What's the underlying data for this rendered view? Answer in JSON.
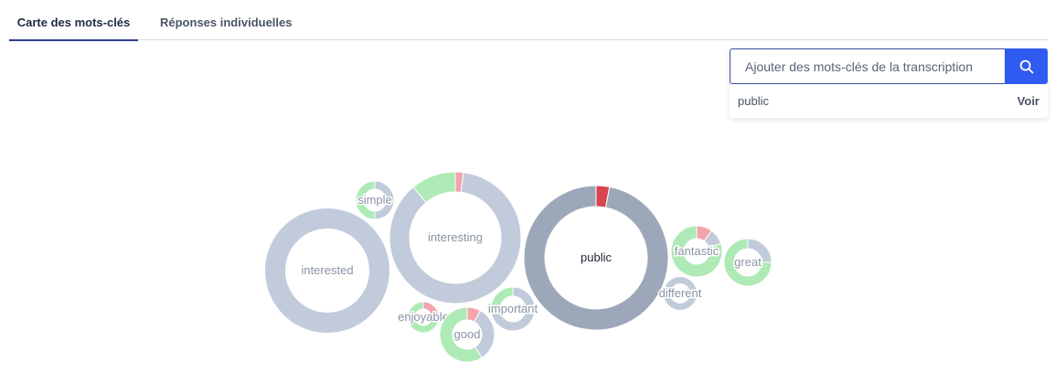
{
  "tabs": [
    {
      "label": "Carte des mots-clés",
      "active": true
    },
    {
      "label": "Réponses individuelles",
      "active": false
    }
  ],
  "search": {
    "placeholder": "Ajouter des mots-clés de la transcription",
    "value": "",
    "button_icon": "search-icon"
  },
  "suggestion": {
    "term": "public",
    "action_label": "Voir"
  },
  "colors": {
    "positive": "#aeeab6",
    "negative": "#f2a5ac",
    "neutral": "#c2cbdb",
    "selected_neutral": "#9ca8b9",
    "selected_negative": "#d9454f",
    "accent": "#2f5bf0",
    "label": "#8a93a3",
    "label_selected": "#1f2433"
  },
  "keywords": [
    {
      "word": "interested",
      "selected": false,
      "segments": [
        {
          "sentiment": "neutral",
          "share": 1.0
        }
      ]
    },
    {
      "word": "interesting",
      "selected": false,
      "segments": [
        {
          "sentiment": "negative",
          "share": 0.02
        },
        {
          "sentiment": "neutral",
          "share": 0.87
        },
        {
          "sentiment": "positive",
          "share": 0.11
        }
      ]
    },
    {
      "word": "public",
      "selected": true,
      "segments": [
        {
          "sentiment": "negative",
          "share": 0.03
        },
        {
          "sentiment": "neutral",
          "share": 0.97
        }
      ]
    },
    {
      "word": "simple",
      "selected": false,
      "segments": [
        {
          "sentiment": "neutral",
          "share": 0.5
        },
        {
          "sentiment": "positive",
          "share": 0.5
        }
      ]
    },
    {
      "word": "enjoyable",
      "selected": false,
      "segments": [
        {
          "sentiment": "negative",
          "share": 0.25
        },
        {
          "sentiment": "positive",
          "share": 0.75
        }
      ]
    },
    {
      "word": "good",
      "selected": false,
      "segments": [
        {
          "sentiment": "negative",
          "share": 0.08
        },
        {
          "sentiment": "neutral",
          "share": 0.33
        },
        {
          "sentiment": "positive",
          "share": 0.59
        }
      ]
    },
    {
      "word": "important",
      "selected": false,
      "segments": [
        {
          "sentiment": "neutral",
          "share": 0.75
        },
        {
          "sentiment": "positive",
          "share": 0.25
        }
      ]
    },
    {
      "word": "fantastic",
      "selected": false,
      "segments": [
        {
          "sentiment": "negative",
          "share": 0.1
        },
        {
          "sentiment": "neutral",
          "share": 0.1
        },
        {
          "sentiment": "positive",
          "share": 0.8
        }
      ]
    },
    {
      "word": "great",
      "selected": false,
      "segments": [
        {
          "sentiment": "neutral",
          "share": 0.25
        },
        {
          "sentiment": "positive",
          "share": 0.75
        }
      ]
    },
    {
      "word": "different",
      "selected": false,
      "segments": [
        {
          "sentiment": "neutral",
          "share": 1.0
        }
      ]
    }
  ]
}
